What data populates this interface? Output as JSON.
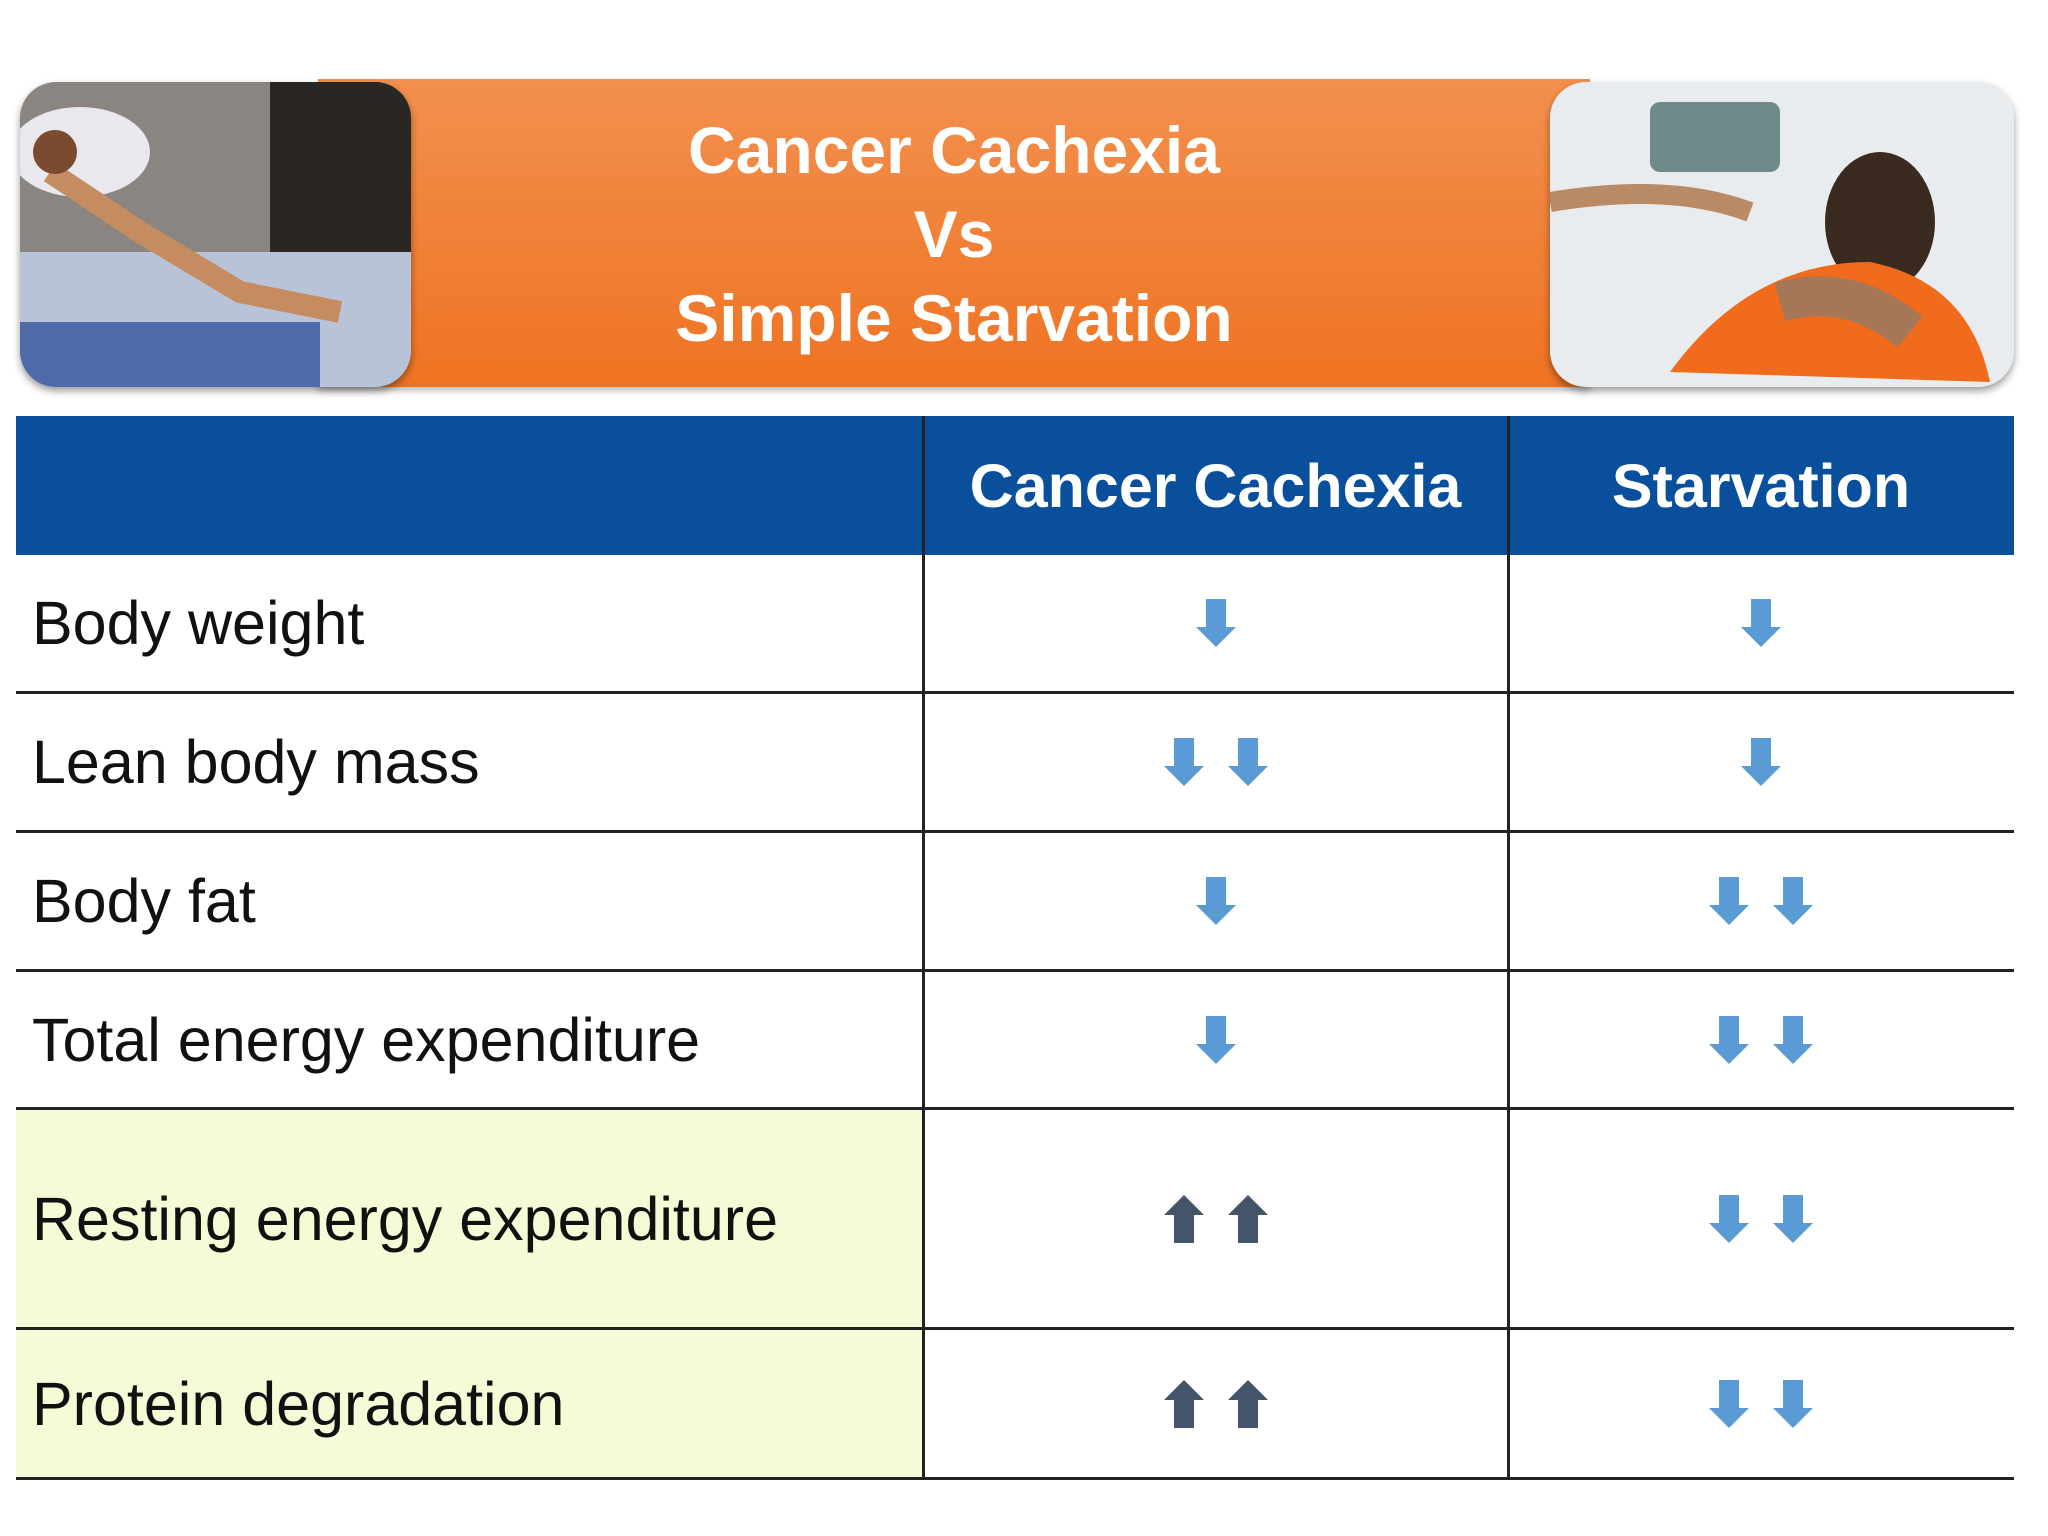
{
  "header": {
    "title": [
      "Cancer Cachexia",
      "Vs",
      "Simple Starvation"
    ]
  },
  "table": {
    "columns": [
      "",
      "Cancer Cachexia",
      "Starvation"
    ],
    "rows": [
      "Body weight",
      "Lean body mass",
      "Body fat",
      "Total energy expenditure",
      "Resting energy expenditure",
      "Protein degradation"
    ]
  }
}
